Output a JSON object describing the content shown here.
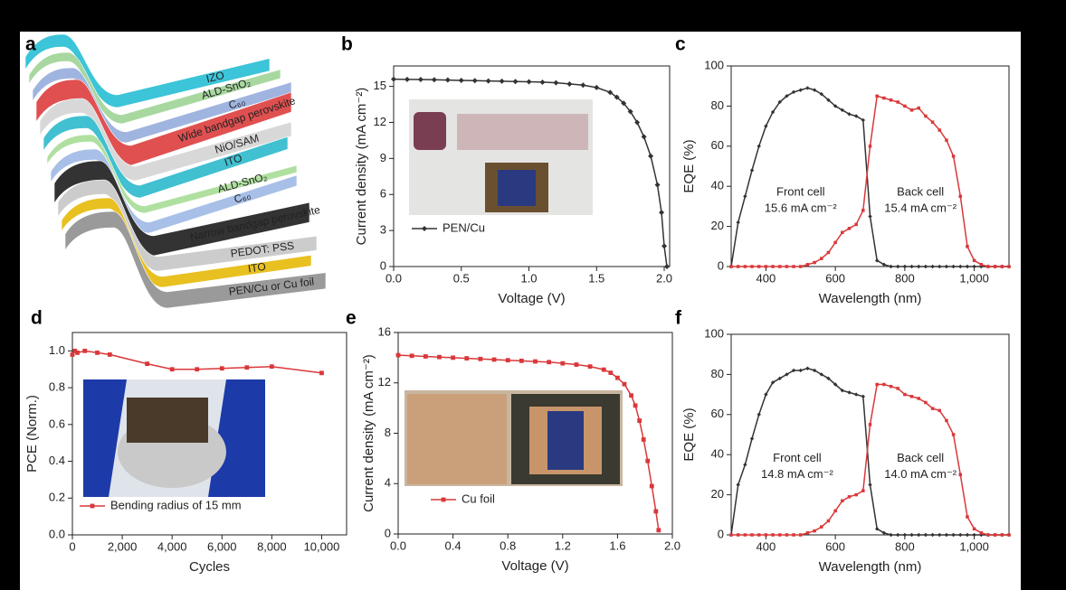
{
  "panel_a": {
    "panel_label": "a",
    "layers": [
      "IZO",
      "ALD-SnO₂",
      "C₆₀",
      "Wide bandgap perovskite",
      "NiO/SAM",
      "ITO",
      "ALD-SnO₂",
      "C₆₀",
      "Narrow bandgap perovskite",
      "PEDOT: PSS",
      "ITO",
      "PEN/Cu or Cu foil"
    ]
  },
  "chart_data": [
    {
      "type": "line",
      "panel_label": "b",
      "x_label": "Voltage (V)",
      "y_label": "Current density (mA cm⁻²)",
      "legend": true,
      "x": [
        0,
        0.1,
        0.2,
        0.3,
        0.4,
        0.5,
        0.6,
        0.7,
        0.8,
        0.9,
        1.0,
        1.1,
        1.2,
        1.3,
        1.4,
        1.5,
        1.6,
        1.65,
        1.7,
        1.75,
        1.8,
        1.85,
        1.9,
        1.95,
        1.98,
        2.0,
        2.02
      ],
      "series": [
        {
          "name": "PEN/Cu",
          "color": "#333333",
          "marker": "diamond",
          "values": [
            15.6,
            15.58,
            15.57,
            15.55,
            15.53,
            15.5,
            15.48,
            15.45,
            15.43,
            15.4,
            15.38,
            15.35,
            15.3,
            15.2,
            15.1,
            14.9,
            14.5,
            14.1,
            13.6,
            12.9,
            12.0,
            10.8,
            9.2,
            6.8,
            4.5,
            1.7,
            0
          ]
        }
      ],
      "xlim": [
        0,
        2.04
      ],
      "ylim": [
        0,
        16.7
      ],
      "xticks": [
        {
          "value": 0,
          "label": "0.0"
        },
        0.5,
        {
          "value": 1,
          "label": "1.0"
        },
        1.5,
        {
          "value": 2,
          "label": "2.0"
        }
      ],
      "yticks": [
        0,
        3,
        6,
        9,
        12,
        15
      ]
    },
    {
      "type": "line",
      "panel_label": "c",
      "x_label": "Wavelength (nm)",
      "y_label": "EQE (%)",
      "legend": false,
      "x": [
        300,
        320,
        340,
        360,
        380,
        400,
        420,
        440,
        460,
        480,
        500,
        520,
        540,
        560,
        580,
        600,
        620,
        640,
        660,
        680,
        700,
        720,
        740,
        760,
        780,
        800,
        820,
        840,
        860,
        880,
        900,
        920,
        940,
        960,
        980,
        1000,
        1020,
        1040,
        1060,
        1080,
        1100
      ],
      "series": [
        {
          "name": "Front cell",
          "annotation": "15.6 mA cm⁻²",
          "color": "#333333",
          "marker": "diamond",
          "values": [
            0,
            22,
            35,
            48,
            60,
            70,
            77,
            82,
            85,
            87,
            88,
            89,
            88,
            86,
            83,
            80,
            78,
            76,
            75,
            73,
            25,
            3,
            1,
            0,
            0,
            0,
            0,
            0,
            0,
            0,
            0,
            0,
            0,
            0,
            0,
            0,
            0,
            0,
            0,
            0,
            0
          ]
        },
        {
          "name": "Back cell",
          "annotation": "15.4 mA cm⁻²",
          "color": "#d9383a",
          "marker": "square",
          "values": [
            0,
            0,
            0,
            0,
            0,
            0,
            0,
            0,
            0,
            0,
            0,
            1,
            2,
            4,
            7,
            12,
            17,
            19,
            21,
            28,
            60,
            85,
            84,
            83,
            82,
            80,
            78,
            79,
            75,
            72,
            68,
            63,
            55,
            35,
            10,
            3,
            1,
            0,
            0,
            0,
            0
          ]
        }
      ],
      "xlim": [
        300,
        1100
      ],
      "ylim": [
        0,
        100
      ],
      "xticks": [
        400,
        600,
        800,
        {
          "value": 1000,
          "label": "1,000"
        }
      ],
      "yticks": [
        0,
        20,
        40,
        60,
        80,
        100
      ]
    },
    {
      "type": "line",
      "panel_label": "d",
      "x_label": "Cycles",
      "y_label": "PCE (Norm.)",
      "legend": true,
      "x": [
        0,
        100,
        200,
        500,
        1000,
        1500,
        3000,
        4000,
        5000,
        6000,
        7000,
        8000,
        10000
      ],
      "series": [
        {
          "name": "Bending radius of 15 mm",
          "color": "#d9383a",
          "marker": "square",
          "values": [
            0.98,
            1.0,
            0.99,
            1.0,
            0.99,
            0.98,
            0.93,
            0.9,
            0.9,
            0.905,
            0.91,
            0.915,
            0.88
          ]
        }
      ],
      "xlim": [
        0,
        11000
      ],
      "ylim": [
        0,
        1.1
      ],
      "xticks": [
        0,
        {
          "value": 2000,
          "label": "2,000"
        },
        {
          "value": 4000,
          "label": "4,000"
        },
        {
          "value": 6000,
          "label": "6,000"
        },
        {
          "value": 8000,
          "label": "8,000"
        },
        {
          "value": 10000,
          "label": "10,000"
        }
      ],
      "yticks": [
        {
          "value": 0,
          "label": "0.0"
        },
        0.2,
        0.4,
        0.6,
        0.8,
        {
          "value": 1,
          "label": "1.0"
        }
      ]
    },
    {
      "type": "line",
      "panel_label": "e",
      "x_label": "Voltage (V)",
      "y_label": "Current density (mA cm⁻²)",
      "legend": true,
      "x": [
        0,
        0.1,
        0.2,
        0.3,
        0.4,
        0.5,
        0.6,
        0.7,
        0.8,
        0.9,
        1.0,
        1.1,
        1.2,
        1.3,
        1.4,
        1.5,
        1.55,
        1.6,
        1.65,
        1.7,
        1.73,
        1.76,
        1.79,
        1.82,
        1.85,
        1.88,
        1.9
      ],
      "series": [
        {
          "name": "Cu foil",
          "color": "#d9383a",
          "marker": "square",
          "values": [
            14.2,
            14.15,
            14.1,
            14.05,
            14.0,
            13.95,
            13.9,
            13.85,
            13.8,
            13.75,
            13.7,
            13.65,
            13.55,
            13.45,
            13.3,
            13.05,
            12.8,
            12.4,
            11.9,
            11.0,
            10.2,
            9.0,
            7.5,
            5.8,
            3.8,
            1.8,
            0.3
          ]
        }
      ],
      "xlim": [
        0,
        2.0
      ],
      "ylim": [
        0,
        16
      ],
      "xticks": [
        {
          "value": 0,
          "label": "0.0"
        },
        0.4,
        0.8,
        1.2,
        1.6,
        {
          "value": 2,
          "label": "2.0"
        }
      ],
      "yticks": [
        0,
        4,
        8,
        12,
        16
      ]
    },
    {
      "type": "line",
      "panel_label": "f",
      "x_label": "Wavelength (nm)",
      "y_label": "EQE (%)",
      "legend": false,
      "x": [
        300,
        320,
        340,
        360,
        380,
        400,
        420,
        440,
        460,
        480,
        500,
        520,
        540,
        560,
        580,
        600,
        620,
        640,
        660,
        680,
        700,
        720,
        740,
        760,
        780,
        800,
        820,
        840,
        860,
        880,
        900,
        920,
        940,
        960,
        980,
        1000,
        1020,
        1040,
        1060,
        1080,
        1100
      ],
      "series": [
        {
          "name": "Front cell",
          "annotation": "14.8 mA cm⁻²",
          "color": "#333333",
          "marker": "diamond",
          "values": [
            0,
            25,
            35,
            48,
            60,
            70,
            76,
            78,
            80,
            82,
            82,
            83,
            82,
            80,
            78,
            75,
            72,
            71,
            70,
            69,
            25,
            3,
            1,
            0,
            0,
            0,
            0,
            0,
            0,
            0,
            0,
            0,
            0,
            0,
            0,
            0,
            0,
            0,
            0,
            0,
            0
          ]
        },
        {
          "name": "Back cell",
          "annotation": "14.0 mA cm⁻²",
          "color": "#d9383a",
          "marker": "square",
          "values": [
            0,
            0,
            0,
            0,
            0,
            0,
            0,
            0,
            0,
            0,
            0,
            1,
            2,
            4,
            7,
            12,
            17,
            19,
            20,
            22,
            55,
            75,
            75,
            74,
            73,
            70,
            69,
            68,
            66,
            63,
            62,
            57,
            50,
            30,
            9,
            3,
            1,
            0,
            0,
            0,
            0
          ]
        }
      ],
      "xlim": [
        300,
        1100
      ],
      "ylim": [
        0,
        100
      ],
      "xticks": [
        400,
        600,
        800,
        {
          "value": 1000,
          "label": "1,000"
        }
      ],
      "yticks": [
        0,
        20,
        40,
        60,
        80,
        100
      ]
    }
  ]
}
